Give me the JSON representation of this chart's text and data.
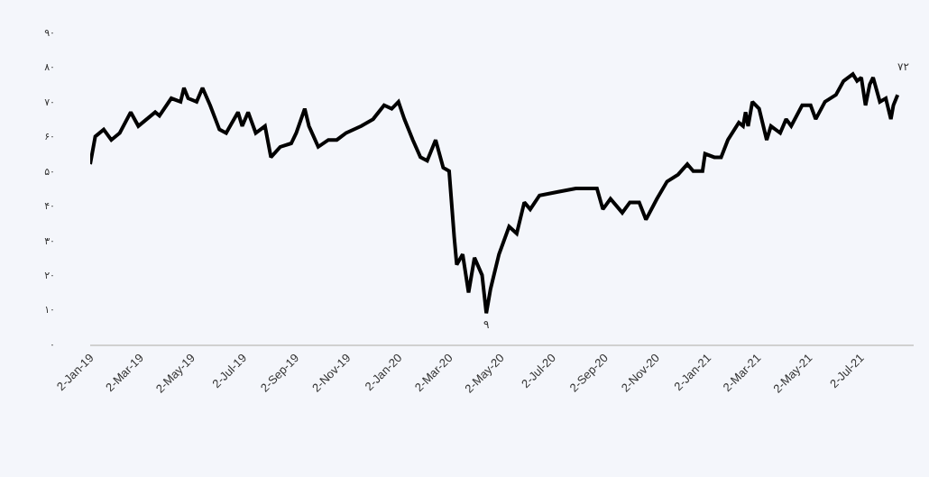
{
  "chart_data": {
    "type": "line",
    "x": [
      "2019-01-02",
      "2019-01-08",
      "2019-01-18",
      "2019-01-27",
      "2019-02-06",
      "2019-02-19",
      "2019-02-28",
      "2019-03-20",
      "2019-03-25",
      "2019-04-08",
      "2019-04-19",
      "2019-04-23",
      "2019-04-28",
      "2019-05-08",
      "2019-05-15",
      "2019-05-24",
      "2019-06-04",
      "2019-06-12",
      "2019-06-26",
      "2019-07-01",
      "2019-07-08",
      "2019-07-17",
      "2019-07-28",
      "2019-08-04",
      "2019-08-15",
      "2019-08-28",
      "2019-09-03",
      "2019-09-13",
      "2019-09-18",
      "2019-09-29",
      "2019-10-11",
      "2019-10-21",
      "2019-11-01",
      "2019-11-19",
      "2019-12-03",
      "2019-12-16",
      "2019-12-25",
      "2020-01-02",
      "2020-01-09",
      "2020-01-19",
      "2020-01-28",
      "2020-02-05",
      "2020-02-15",
      "2020-02-24",
      "2020-03-02",
      "2020-03-08",
      "2020-03-11",
      "2020-03-18",
      "2020-03-25",
      "2020-04-01",
      "2020-04-10",
      "2020-04-15",
      "2020-04-20",
      "2020-04-30",
      "2020-05-12",
      "2020-05-21",
      "2020-05-30",
      "2020-06-06",
      "2020-06-17",
      "2020-07-09",
      "2020-07-30",
      "2020-08-18",
      "2020-08-24",
      "2020-08-31",
      "2020-09-09",
      "2020-09-23",
      "2020-10-02",
      "2020-10-13",
      "2020-10-21",
      "2020-11-03",
      "2020-11-15",
      "2020-11-28",
      "2020-12-09",
      "2020-12-16",
      "2020-12-27",
      "2020-12-30",
      "2021-01-10",
      "2021-01-18",
      "2021-01-26",
      "2021-02-08",
      "2021-02-13",
      "2021-02-16",
      "2021-02-19",
      "2021-02-24",
      "2021-03-04",
      "2021-03-13",
      "2021-03-18",
      "2021-03-29",
      "2021-04-05",
      "2021-04-11",
      "2021-04-24",
      "2021-05-04",
      "2021-05-10",
      "2021-05-21",
      "2021-06-03",
      "2021-06-12",
      "2021-06-23",
      "2021-06-28",
      "2021-07-03",
      "2021-07-08",
      "2021-07-13",
      "2021-07-17",
      "2021-07-25",
      "2021-08-01",
      "2021-08-07",
      "2021-08-10",
      "2021-08-15"
    ],
    "series": [
      {
        "color": "#000000",
        "values": [
          52,
          60,
          62,
          59,
          61,
          67,
          63,
          67,
          66,
          71,
          70,
          74,
          71,
          70,
          74,
          69,
          62,
          61,
          67,
          63,
          67,
          61,
          63,
          54,
          57,
          58,
          61,
          68,
          63,
          57,
          59,
          59,
          61,
          63,
          65,
          69,
          68,
          70,
          65,
          59,
          54,
          53,
          59,
          51,
          50,
          31,
          23,
          26,
          15,
          25,
          20,
          9,
          16,
          26,
          34,
          32,
          41,
          39,
          43,
          44,
          45,
          45,
          45,
          39,
          42,
          38,
          41,
          41,
          36,
          42,
          47,
          49,
          52,
          50,
          50,
          55,
          54,
          54,
          59,
          64,
          63,
          67,
          63,
          70,
          68,
          59,
          63,
          61,
          65,
          63,
          69,
          69,
          65,
          70,
          72,
          76,
          78,
          76,
          77,
          69,
          75,
          77,
          70,
          71,
          65,
          69,
          72
        ]
      }
    ],
    "xlim": [
      "2019-01-02",
      "2021-09-03"
    ],
    "xticks": [
      {
        "value": "2019-01-02",
        "label": "2-Jan-19"
      },
      {
        "value": "2019-03-02",
        "label": "2-Mar-19"
      },
      {
        "value": "2019-05-02",
        "label": "2-May-19"
      },
      {
        "value": "2019-07-02",
        "label": "2-Jul-19"
      },
      {
        "value": "2019-09-02",
        "label": "2-Sep-19"
      },
      {
        "value": "2019-11-02",
        "label": "2-Nov-19"
      },
      {
        "value": "2020-01-02",
        "label": "2-Jan-20"
      },
      {
        "value": "2020-03-02",
        "label": "2-Mar-20"
      },
      {
        "value": "2020-05-02",
        "label": "2-May-20"
      },
      {
        "value": "2020-07-02",
        "label": "2-Jul-20"
      },
      {
        "value": "2020-09-02",
        "label": "2-Sep-20"
      },
      {
        "value": "2020-11-02",
        "label": "2-Nov-20"
      },
      {
        "value": "2021-01-02",
        "label": "2-Jan-21"
      },
      {
        "value": "2021-03-02",
        "label": "2-Mar-21"
      },
      {
        "value": "2021-05-02",
        "label": "2-May-21"
      },
      {
        "value": "2021-07-02",
        "label": "2-Jul-21"
      }
    ],
    "ylim": [
      0,
      90
    ],
    "yticks": [
      {
        "value": 0,
        "label": "۰"
      },
      {
        "value": 10,
        "label": "۱۰"
      },
      {
        "value": 20,
        "label": "۲۰"
      },
      {
        "value": 30,
        "label": "۳۰"
      },
      {
        "value": 40,
        "label": "۴۰"
      },
      {
        "value": 50,
        "label": "۵۰"
      },
      {
        "value": 60,
        "label": "۶۰"
      },
      {
        "value": 70,
        "label": "۷۰"
      },
      {
        "value": 80,
        "label": "۸۰"
      },
      {
        "value": 90,
        "label": "۹۰"
      }
    ],
    "annotations": [
      {
        "text": "۹",
        "x": "2020-04-15",
        "y": 9
      },
      {
        "text": "۷۲",
        "x": "2021-08-15",
        "y": 72
      }
    ],
    "grid": false,
    "marker": "none",
    "line_style": "solid"
  }
}
